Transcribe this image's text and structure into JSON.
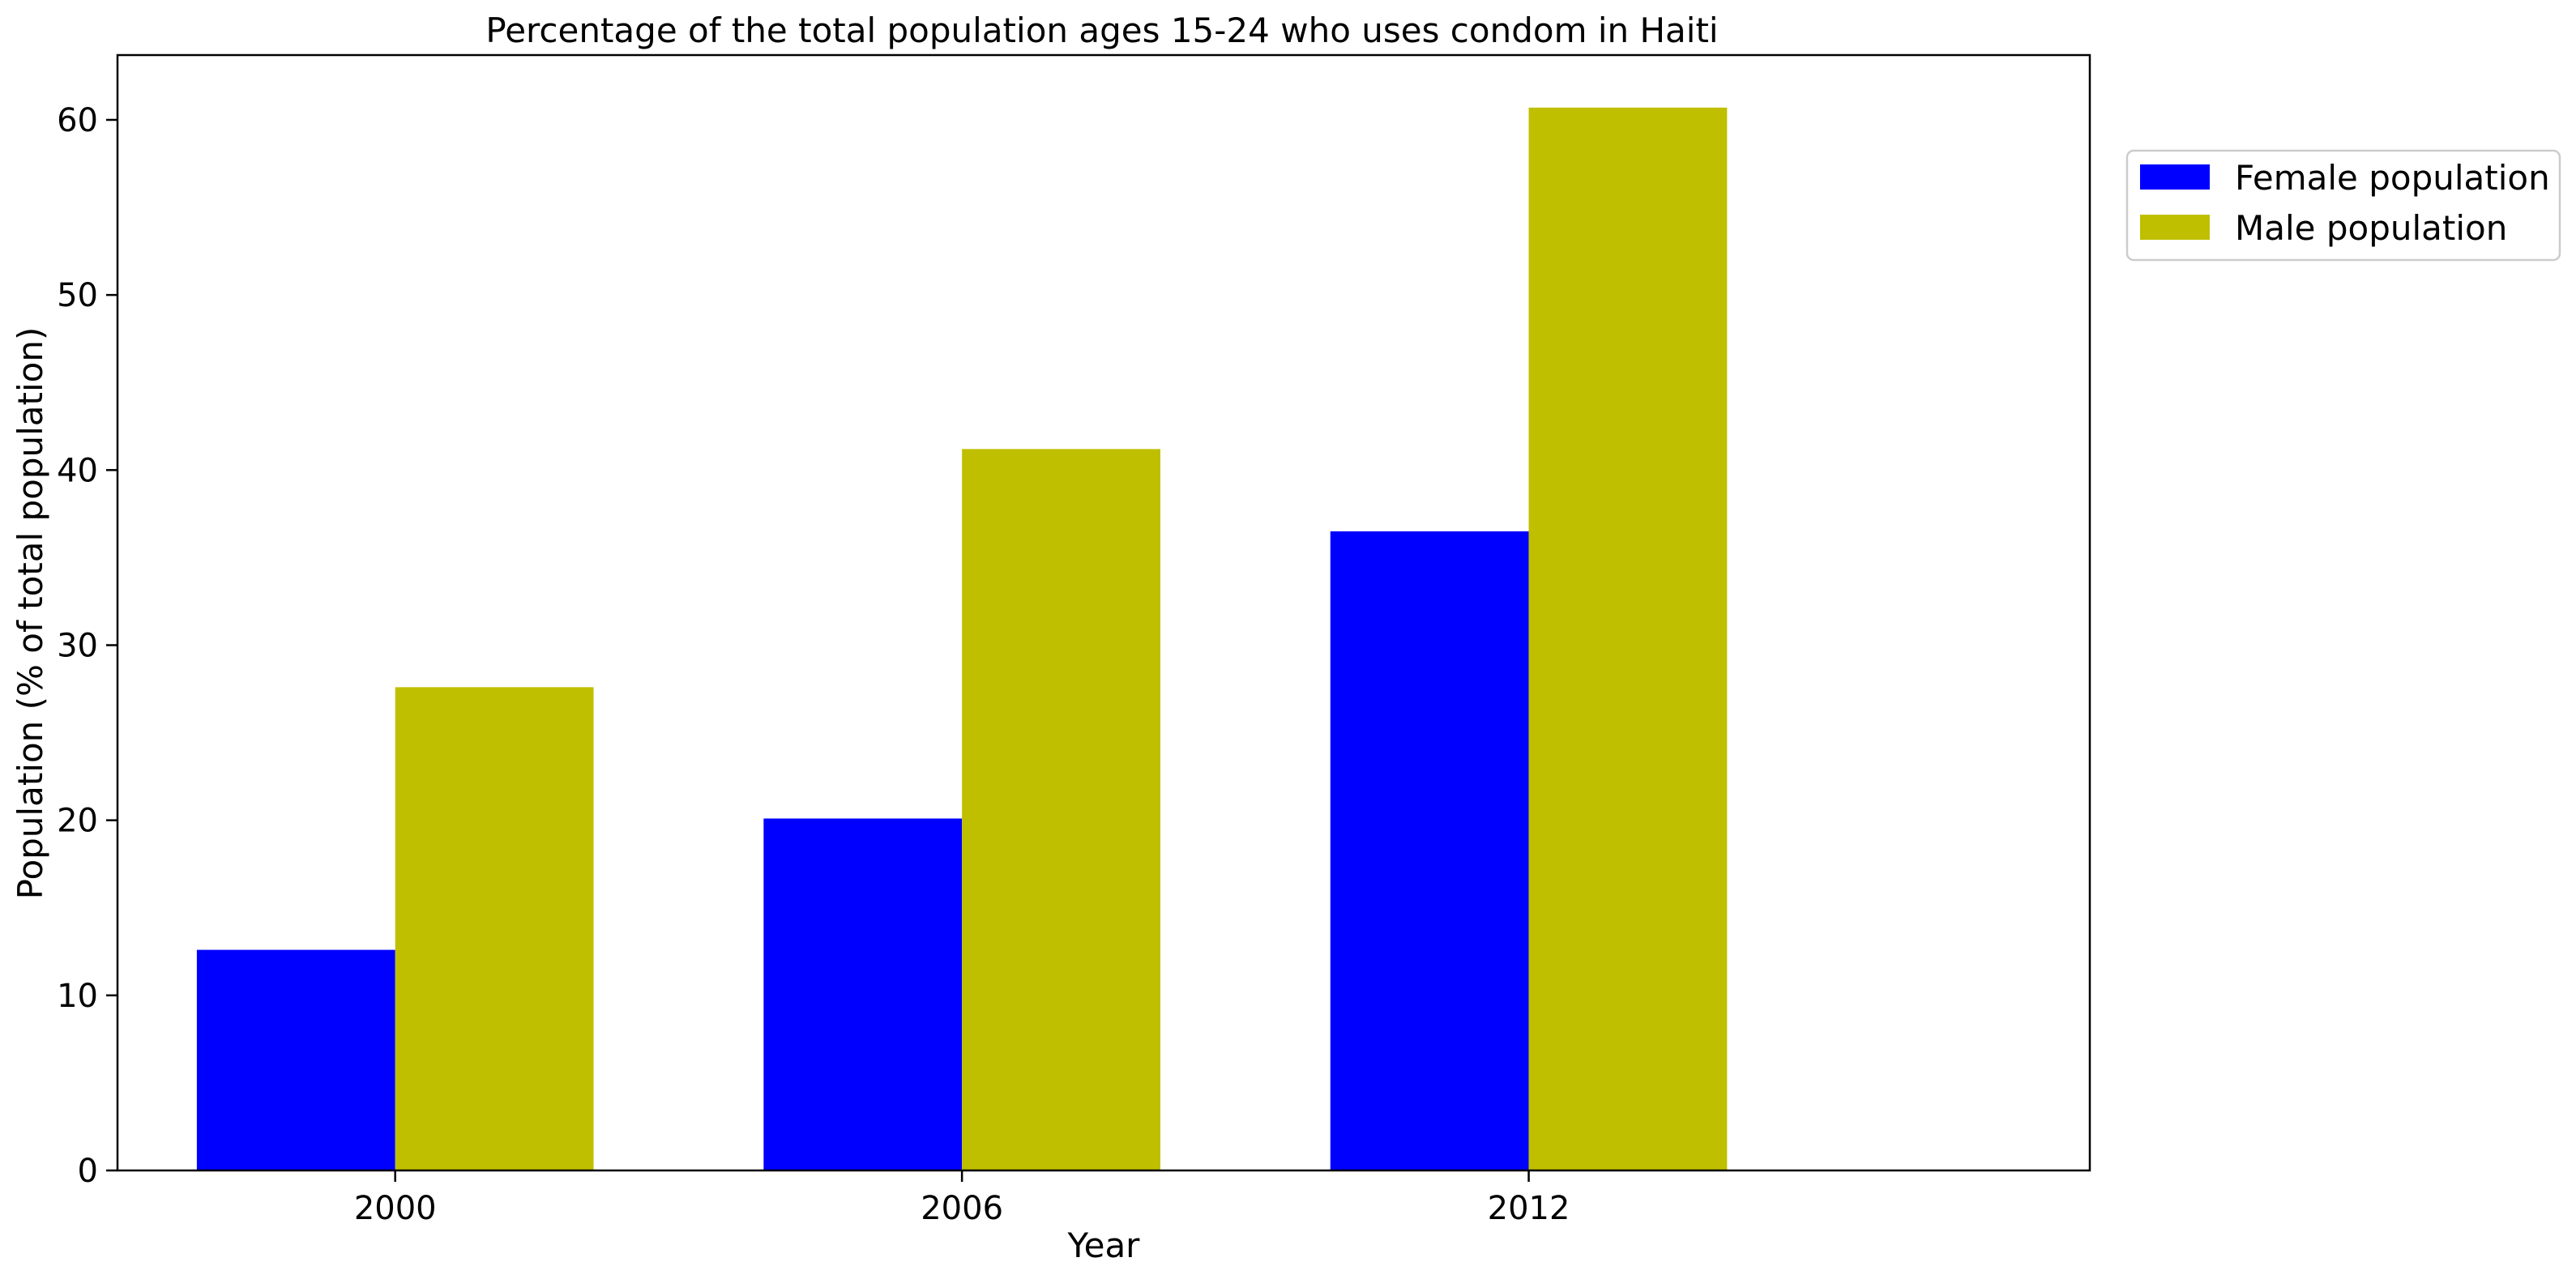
{
  "chart_data": {
    "type": "bar",
    "title": "Percentage of the total population ages 15-24 who uses condom in Haiti",
    "xlabel": "Year",
    "ylabel": "Population (% of total population)",
    "categories": [
      "2000",
      "2006",
      "2012"
    ],
    "series": [
      {
        "name": "Female population",
        "color": "#0000ff",
        "values": [
          12.6,
          20.1,
          36.5
        ]
      },
      {
        "name": "Male population",
        "color": "#bfbf00",
        "values": [
          27.6,
          41.2,
          60.7
        ]
      }
    ],
    "ylim": [
      0,
      63.7
    ],
    "yticks": [
      0,
      10,
      20,
      30,
      40,
      50,
      60
    ],
    "grid": false,
    "legend_position": "upper-right-outside"
  }
}
